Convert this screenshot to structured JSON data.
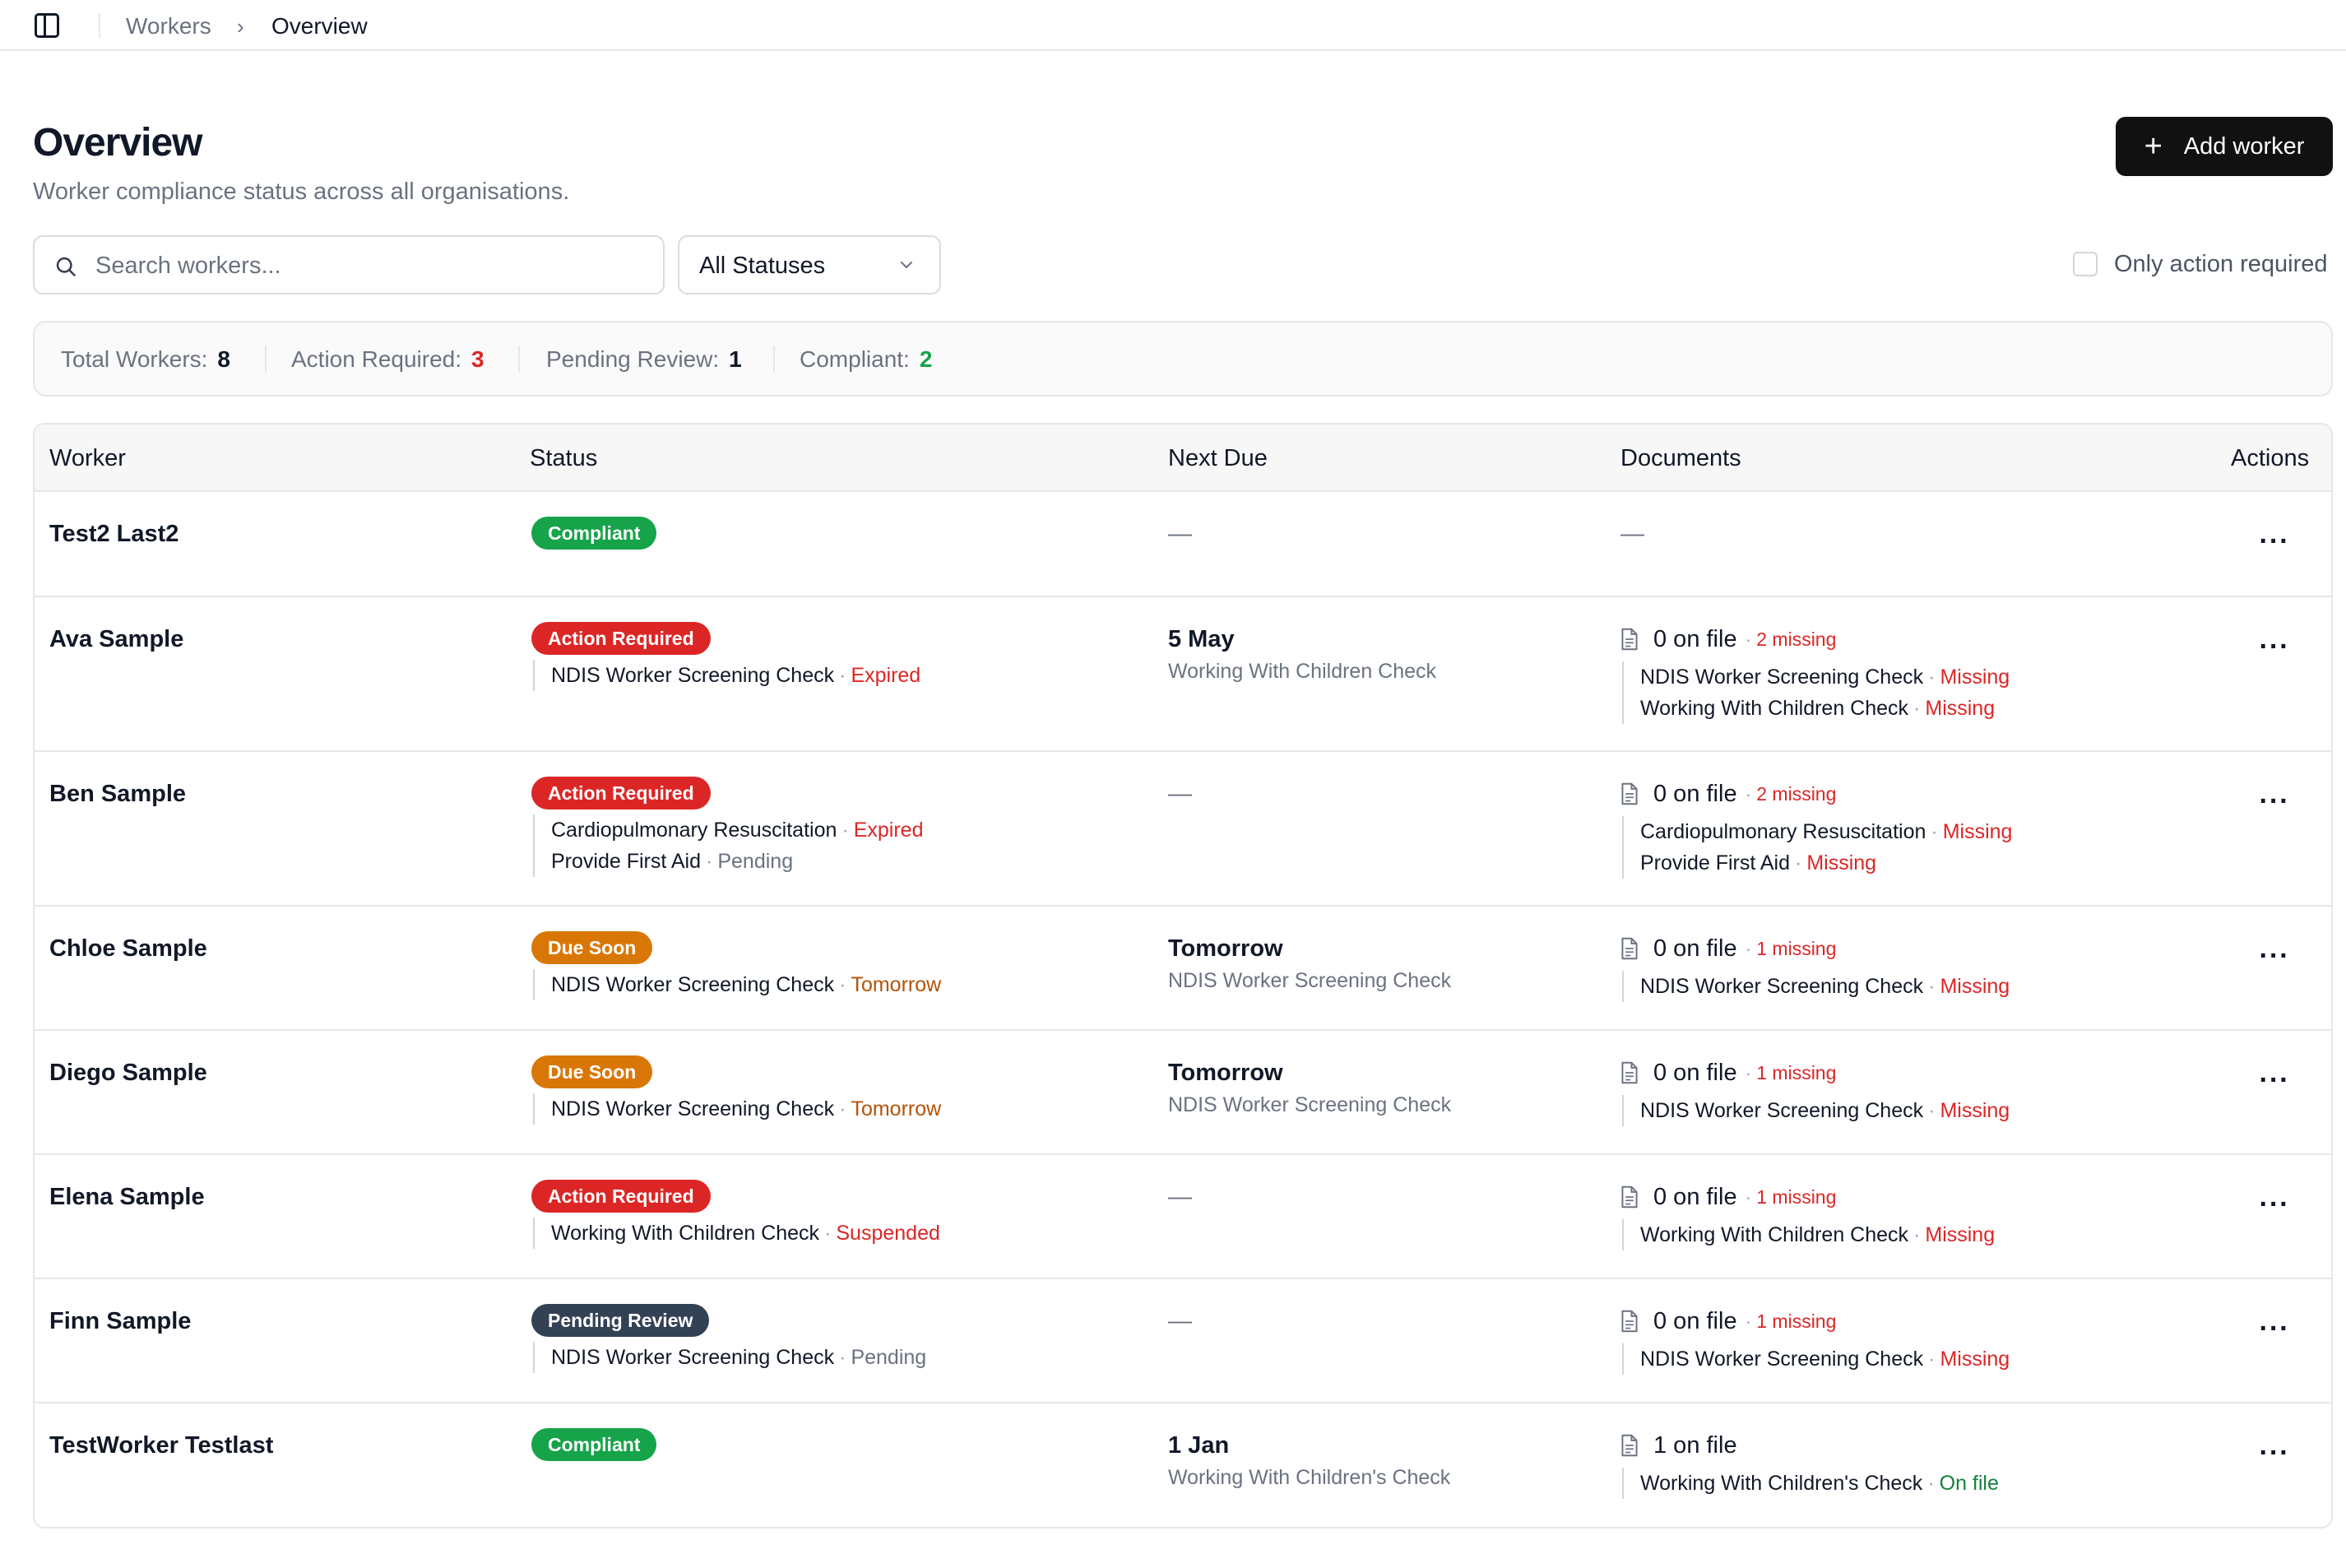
{
  "breadcrumb": [
    "Workers",
    "Overview"
  ],
  "header": {
    "title": "Overview",
    "subtitle": "Worker compliance status across all organisations.",
    "add_button": "Add worker"
  },
  "filters": {
    "search_placeholder": "Search workers...",
    "status_selected": "All Statuses",
    "only_action_label": "Only action required",
    "only_action_checked": false
  },
  "summary": [
    {
      "label": "Total Workers:",
      "value": "8",
      "color": "#111827"
    },
    {
      "label": "Action Required:",
      "value": "3",
      "color": "#dc2626"
    },
    {
      "label": "Pending Review:",
      "value": "1",
      "color": "#111827"
    },
    {
      "label": "Compliant:",
      "value": "2",
      "color": "#16a34a"
    }
  ],
  "table": {
    "headers": [
      "Worker",
      "Status",
      "Next Due",
      "Documents",
      "Actions"
    ],
    "rows": [
      {
        "name": "Test2 Last2",
        "status": {
          "label": "Compliant",
          "variant": "green"
        },
        "status_items": [],
        "next_due": null,
        "documents": null,
        "actions_icon": "more-horizontal-icon"
      },
      {
        "name": "Ava Sample",
        "status": {
          "label": "Action Required",
          "variant": "red"
        },
        "status_items": [
          {
            "name": "NDIS Worker Screening Check",
            "state": "Expired",
            "tone": "red"
          }
        ],
        "next_due": {
          "date": "5 May",
          "item": "Working With Children Check"
        },
        "documents": {
          "count": "0 on file",
          "missing": "2 missing",
          "items": [
            {
              "name": "NDIS Worker Screening Check",
              "state": "Missing",
              "tone": "red"
            },
            {
              "name": "Working With Children Check",
              "state": "Missing",
              "tone": "red"
            }
          ]
        },
        "actions_icon": "more-horizontal-icon"
      },
      {
        "name": "Ben Sample",
        "status": {
          "label": "Action Required",
          "variant": "red"
        },
        "status_items": [
          {
            "name": "Cardiopulmonary Resuscitation",
            "state": "Expired",
            "tone": "red"
          },
          {
            "name": "Provide First Aid",
            "state": "Pending",
            "tone": "gray"
          }
        ],
        "next_due": null,
        "documents": {
          "count": "0 on file",
          "missing": "2 missing",
          "items": [
            {
              "name": "Cardiopulmonary Resuscitation",
              "state": "Missing",
              "tone": "red"
            },
            {
              "name": "Provide First Aid",
              "state": "Missing",
              "tone": "red"
            }
          ]
        },
        "actions_icon": "more-horizontal-icon"
      },
      {
        "name": "Chloe Sample",
        "status": {
          "label": "Due Soon",
          "variant": "orange"
        },
        "status_items": [
          {
            "name": "NDIS Worker Screening Check",
            "state": "Tomorrow",
            "tone": "orange"
          }
        ],
        "next_due": {
          "date": "Tomorrow",
          "item": "NDIS Worker Screening Check"
        },
        "documents": {
          "count": "0 on file",
          "missing": "1 missing",
          "items": [
            {
              "name": "NDIS Worker Screening Check",
              "state": "Missing",
              "tone": "red"
            }
          ]
        },
        "actions_icon": "more-horizontal-icon"
      },
      {
        "name": "Diego Sample",
        "status": {
          "label": "Due Soon",
          "variant": "orange"
        },
        "status_items": [
          {
            "name": "NDIS Worker Screening Check",
            "state": "Tomorrow",
            "tone": "orange"
          }
        ],
        "next_due": {
          "date": "Tomorrow",
          "item": "NDIS Worker Screening Check"
        },
        "documents": {
          "count": "0 on file",
          "missing": "1 missing",
          "items": [
            {
              "name": "NDIS Worker Screening Check",
              "state": "Missing",
              "tone": "red"
            }
          ]
        },
        "actions_icon": "more-horizontal-icon"
      },
      {
        "name": "Elena Sample",
        "status": {
          "label": "Action Required",
          "variant": "red"
        },
        "status_items": [
          {
            "name": "Working With Children Check",
            "state": "Suspended",
            "tone": "red"
          }
        ],
        "next_due": null,
        "documents": {
          "count": "0 on file",
          "missing": "1 missing",
          "items": [
            {
              "name": "Working With Children Check",
              "state": "Missing",
              "tone": "red"
            }
          ]
        },
        "actions_icon": "more-horizontal-icon"
      },
      {
        "name": "Finn Sample",
        "status": {
          "label": "Pending Review",
          "variant": "slate"
        },
        "status_items": [
          {
            "name": "NDIS Worker Screening Check",
            "state": "Pending",
            "tone": "gray"
          }
        ],
        "next_due": null,
        "documents": {
          "count": "0 on file",
          "missing": "1 missing",
          "items": [
            {
              "name": "NDIS Worker Screening Check",
              "state": "Missing",
              "tone": "red"
            }
          ]
        },
        "actions_icon": "more-horizontal-icon"
      },
      {
        "name": "TestWorker Testlast",
        "status": {
          "label": "Compliant",
          "variant": "green"
        },
        "status_items": [],
        "next_due": {
          "date": "1 Jan",
          "item": "Working With Children's Check"
        },
        "documents": {
          "count": "1 on file",
          "missing": null,
          "items": [
            {
              "name": "Working With Children's Check",
              "state": "On file",
              "tone": "green"
            }
          ]
        },
        "actions_icon": "more-horizontal-icon"
      }
    ],
    "empty_value": "—"
  }
}
